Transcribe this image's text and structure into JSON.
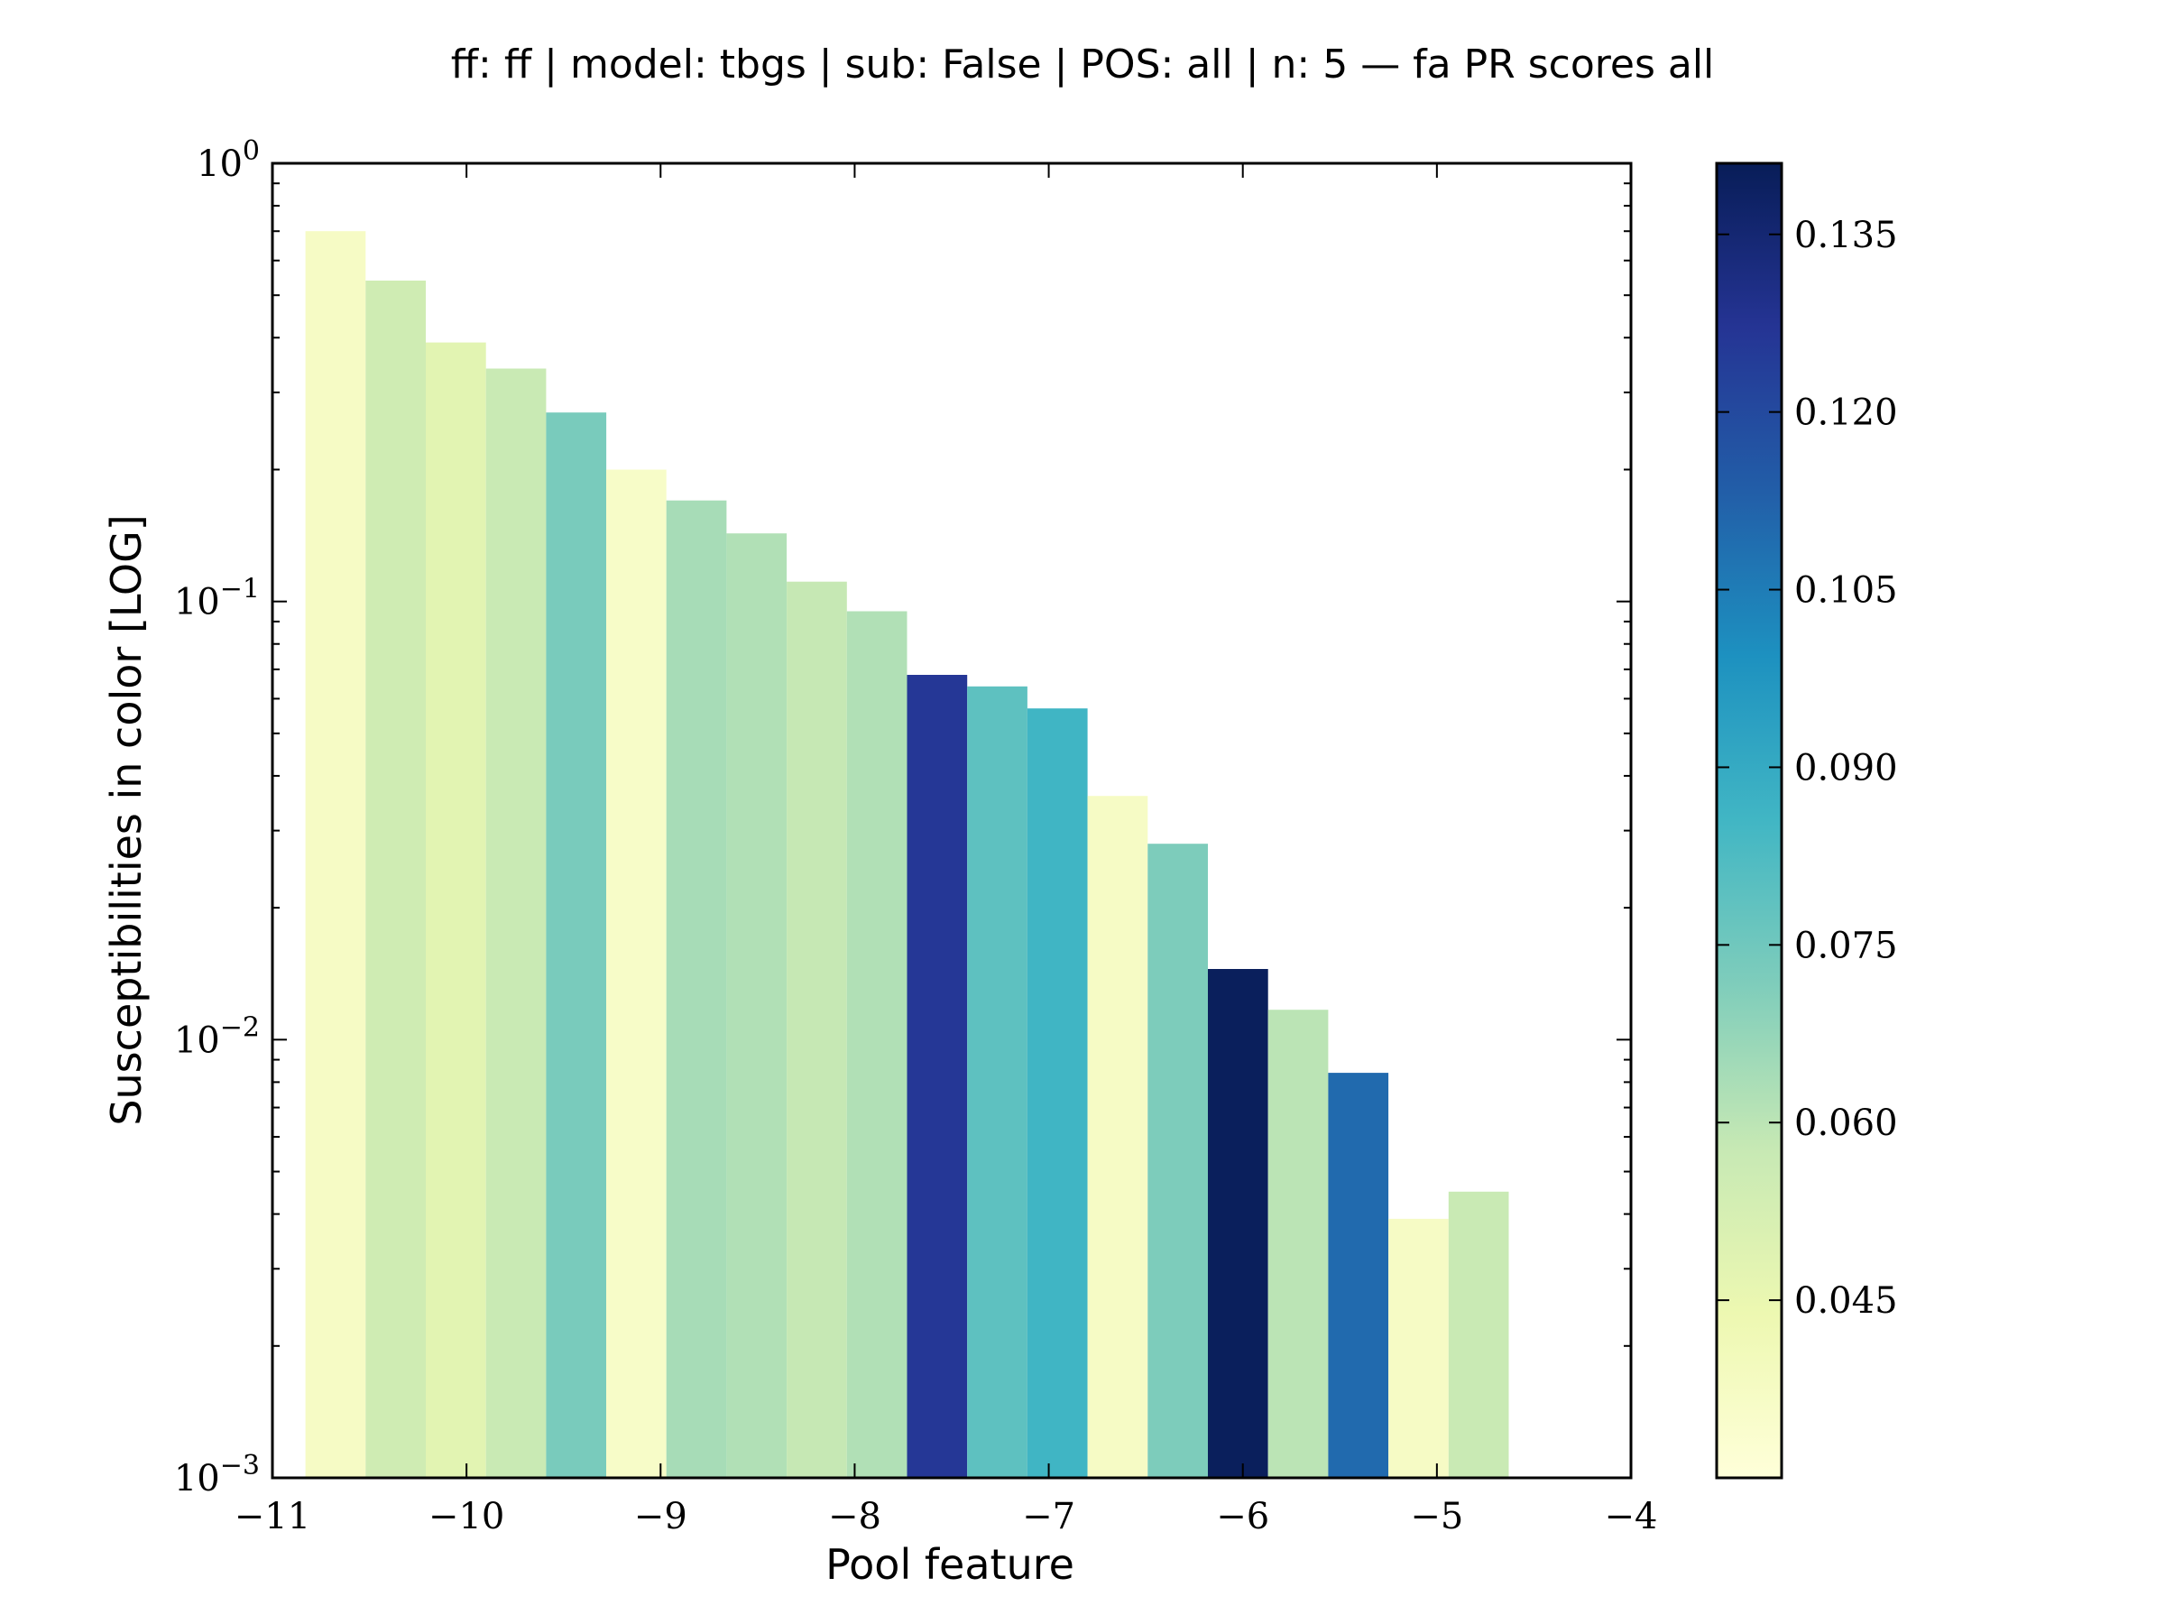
{
  "chart_data": {
    "type": "bar",
    "title": "ff: ff | model: tbgs | sub: False | POS: all | n: 5 — fa PR scores all",
    "xlabel": "Pool feature",
    "ylabel": "Susceptibilities in color [LOG]",
    "yscale": "log",
    "xlim": [
      -11,
      -4
    ],
    "ylim": [
      0.001,
      1
    ],
    "grid": false,
    "x_ticks": [
      {
        "value": -11,
        "label": "−11"
      },
      {
        "value": -10,
        "label": "−10"
      },
      {
        "value": -9,
        "label": "−9"
      },
      {
        "value": -8,
        "label": "−8"
      },
      {
        "value": -7,
        "label": "−7"
      },
      {
        "value": -6,
        "label": "−6"
      },
      {
        "value": -5,
        "label": "−5"
      },
      {
        "value": -4,
        "label": "−4"
      }
    ],
    "y_ticks": [
      {
        "value": 1,
        "base": "10",
        "exp": "0"
      },
      {
        "value": 0.1,
        "base": "10",
        "exp": "−1"
      },
      {
        "value": 0.01,
        "base": "10",
        "exp": "−2"
      },
      {
        "value": 0.001,
        "base": "10",
        "exp": "−3"
      }
    ],
    "bar_width": 0.31,
    "bars": [
      {
        "x": -10.83,
        "value": 0.7,
        "color_value": 0.037
      },
      {
        "x": -10.52,
        "value": 0.54,
        "color_value": 0.055
      },
      {
        "x": -10.21,
        "value": 0.39,
        "color_value": 0.048
      },
      {
        "x": -9.9,
        "value": 0.34,
        "color_value": 0.057
      },
      {
        "x": -9.59,
        "value": 0.27,
        "color_value": 0.073
      },
      {
        "x": -9.28,
        "value": 0.2,
        "color_value": 0.036
      },
      {
        "x": -8.97,
        "value": 0.17,
        "color_value": 0.064
      },
      {
        "x": -8.66,
        "value": 0.143,
        "color_value": 0.062
      },
      {
        "x": -8.35,
        "value": 0.111,
        "color_value": 0.058
      },
      {
        "x": -8.04,
        "value": 0.095,
        "color_value": 0.062
      },
      {
        "x": -7.73,
        "value": 0.068,
        "color_value": 0.126
      },
      {
        "x": -7.42,
        "value": 0.064,
        "color_value": 0.079
      },
      {
        "x": -7.11,
        "value": 0.057,
        "color_value": 0.086
      },
      {
        "x": -6.8,
        "value": 0.036,
        "color_value": 0.037
      },
      {
        "x": -6.49,
        "value": 0.028,
        "color_value": 0.072
      },
      {
        "x": -6.18,
        "value": 0.0145,
        "color_value": 0.14
      },
      {
        "x": -5.87,
        "value": 0.0117,
        "color_value": 0.06
      },
      {
        "x": -5.56,
        "value": 0.0084,
        "color_value": 0.11
      },
      {
        "x": -5.25,
        "value": 0.0039,
        "color_value": 0.037
      },
      {
        "x": -4.94,
        "value": 0.0045,
        "color_value": 0.057
      }
    ],
    "colorbar": {
      "colormap": "YlGnBu",
      "min": 0.03,
      "max": 0.141,
      "tick_values": [
        0.045,
        0.06,
        0.075,
        0.09,
        0.105,
        0.12,
        0.135
      ],
      "tick_labels": [
        "0.045",
        "0.060",
        "0.075",
        "0.090",
        "0.105",
        "0.120",
        "0.135"
      ],
      "stops": [
        {
          "t": 0.0,
          "color": "#ffffd9"
        },
        {
          "t": 0.125,
          "color": "#edf8b1"
        },
        {
          "t": 0.25,
          "color": "#c7e9b4"
        },
        {
          "t": 0.375,
          "color": "#7fcdbb"
        },
        {
          "t": 0.5,
          "color": "#41b6c4"
        },
        {
          "t": 0.625,
          "color": "#1d91c0"
        },
        {
          "t": 0.75,
          "color": "#225ea8"
        },
        {
          "t": 0.875,
          "color": "#253494"
        },
        {
          "t": 1.0,
          "color": "#081d58"
        }
      ]
    }
  }
}
